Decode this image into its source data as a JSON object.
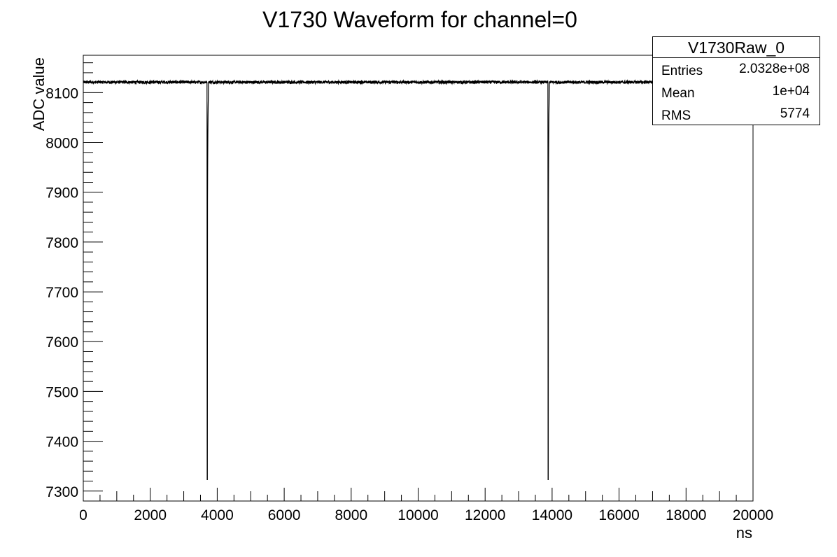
{
  "chart_data": {
    "type": "line",
    "title": "V1730 Waveform for channel=0",
    "xlabel": "ns",
    "ylabel": "ADC value",
    "xlim": [
      0,
      20000
    ],
    "ylim": [
      7280,
      8175
    ],
    "x_ticks": [
      0,
      2000,
      4000,
      6000,
      8000,
      10000,
      12000,
      14000,
      16000,
      18000,
      20000
    ],
    "y_ticks": [
      7300,
      7400,
      7500,
      7600,
      7700,
      7800,
      7900,
      8000,
      8100
    ],
    "grid": false,
    "baseline": 8121,
    "noise_amplitude": 3,
    "pulses": [
      {
        "x": 3700,
        "min": 7323
      },
      {
        "x": 13880,
        "min": 7323
      }
    ],
    "series": [
      {
        "x": [
          0,
          3690,
          3700,
          3710,
          3800,
          13870,
          13880,
          13890,
          13990,
          20000
        ],
        "values": [
          8121,
          8121,
          7323,
          7862,
          8121,
          8121,
          7323,
          7960,
          8121,
          8121
        ]
      }
    ],
    "stats": {
      "name": "V1730Raw_0",
      "rows": [
        {
          "label": "Entries",
          "value": "2.0328e+08"
        },
        {
          "label": "Mean",
          "value": "1e+04"
        },
        {
          "label": "RMS",
          "value": "5774"
        }
      ]
    }
  }
}
